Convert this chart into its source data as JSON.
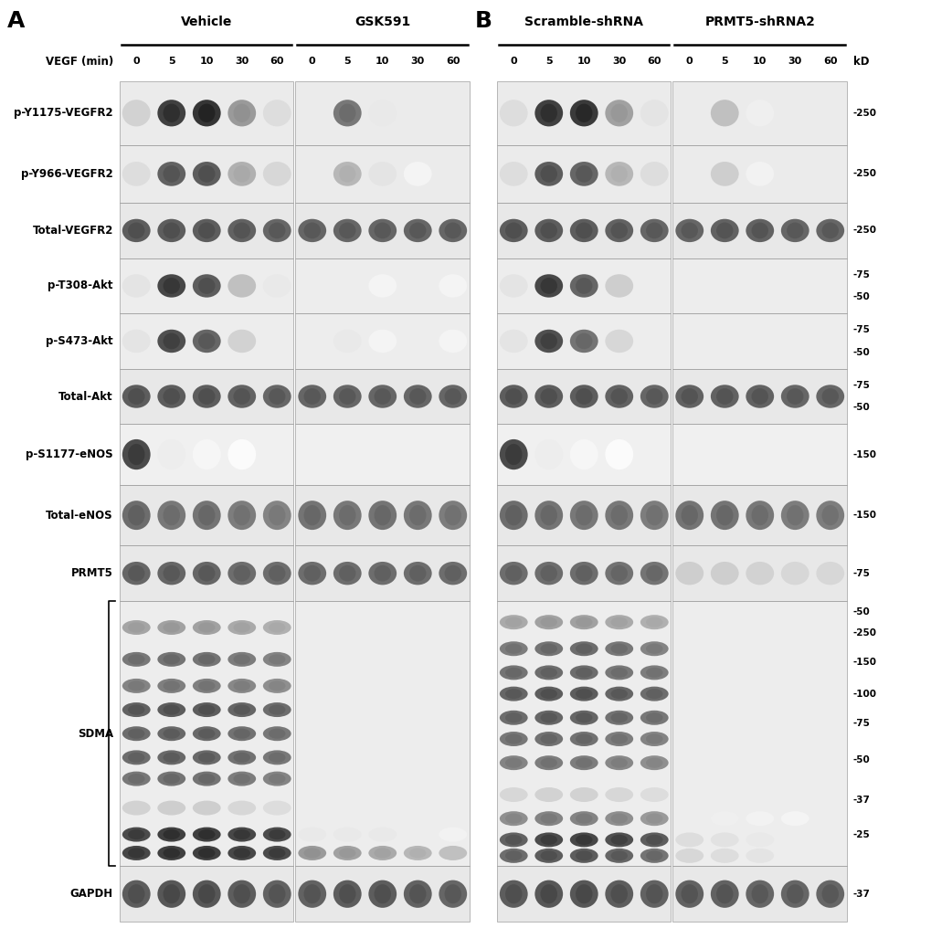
{
  "figure_width": 10.2,
  "figure_height": 10.39,
  "background_color": "#ffffff",
  "panel_A_label": "A",
  "panel_B_label": "B",
  "group_labels_A": [
    "Vehicle",
    "GSK591"
  ],
  "group_labels_B": [
    "Scramble-shRNA",
    "PRMT5-shRNA2"
  ],
  "time_points": [
    "0",
    "5",
    "10",
    "30",
    "60"
  ],
  "vegf_label": "VEGF (min)",
  "kd_label": "kD",
  "row_labels": [
    "p-Y1175-VEGFR2",
    "p-Y966-VEGFR2",
    "Total-VEGFR2",
    "p-T308-Akt",
    "p-S473-Akt",
    "Total-Akt",
    "p-S1177-eNOS",
    "Total-eNOS",
    "PRMT5",
    "SDMA",
    "GAPDH"
  ],
  "row_rel_heights": [
    1.15,
    1.05,
    1.0,
    1.0,
    1.0,
    1.0,
    1.1,
    1.1,
    1.0,
    4.8,
    1.0
  ],
  "font_size_panel": 18,
  "font_size_group": 10,
  "font_size_time": 8,
  "font_size_row": 8.5,
  "font_size_kd": 7.5
}
